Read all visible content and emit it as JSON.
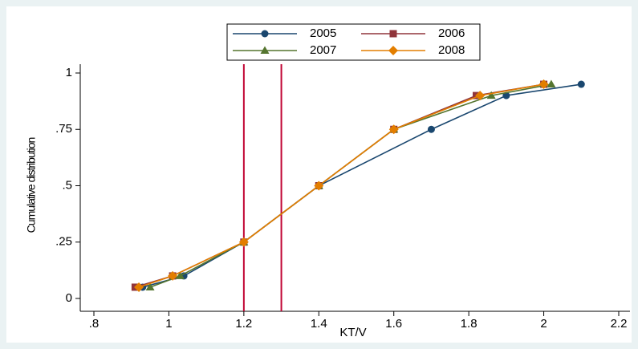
{
  "chart_data": {
    "type": "line",
    "x_label": "KT/V",
    "y_label": "Cumulative distribution",
    "series": [
      {
        "name": "2005",
        "color": "#1a476f",
        "marker": "circle",
        "x": [
          0.93,
          1.04,
          1.2,
          1.4,
          1.7,
          1.9,
          2.1
        ],
        "values": [
          0.05,
          0.1,
          0.25,
          0.5,
          0.75,
          0.9,
          0.95
        ]
      },
      {
        "name": "2006",
        "color": "#90353b",
        "marker": "square",
        "x": [
          0.91,
          1.01,
          1.2,
          1.4,
          1.6,
          1.82,
          2.0
        ],
        "values": [
          0.05,
          0.1,
          0.25,
          0.5,
          0.75,
          0.9,
          0.95
        ]
      },
      {
        "name": "2007",
        "color": "#55752f",
        "marker": "triangle",
        "x": [
          0.95,
          1.03,
          1.2,
          1.4,
          1.6,
          1.86,
          2.02
        ],
        "values": [
          0.05,
          0.1,
          0.25,
          0.5,
          0.75,
          0.9,
          0.95
        ]
      },
      {
        "name": "2008",
        "color": "#e37e00",
        "marker": "diamond",
        "x": [
          0.92,
          1.01,
          1.2,
          1.4,
          1.6,
          1.83,
          2.0
        ],
        "values": [
          0.05,
          0.1,
          0.25,
          0.5,
          0.75,
          0.9,
          0.95
        ]
      }
    ],
    "xlines": [
      1.2,
      1.3
    ],
    "xline_color": "#c10534",
    "xlim": [
      0.8,
      2.2
    ],
    "xticks": [
      {
        "value": 0.8,
        "label": ".8"
      },
      1,
      1.2,
      1.4,
      1.6,
      1.8,
      2,
      2.2
    ],
    "ylim": [
      0,
      1
    ],
    "yticks": [
      0,
      {
        "value": 0.25,
        "label": ".25"
      },
      {
        "value": 0.5,
        "label": ".5"
      },
      {
        "value": 0.75,
        "label": ".75"
      },
      1
    ],
    "legend": "top"
  }
}
